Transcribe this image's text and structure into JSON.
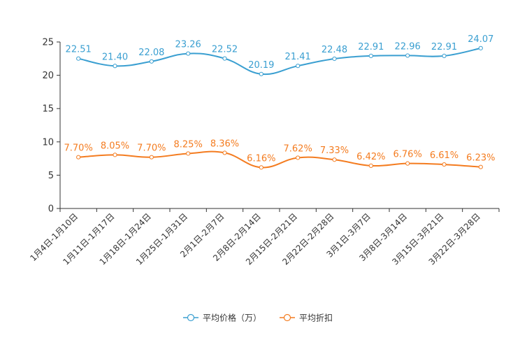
{
  "chart_data": {
    "type": "line",
    "title": "",
    "xlabel": "",
    "ylabel": "",
    "ylim": [
      0,
      25
    ],
    "yticks": [
      0,
      5,
      10,
      15,
      20,
      25
    ],
    "grid": false,
    "legend_position": "bottom-center",
    "categories": [
      "1月4日-1月10日",
      "1月11日-1月17日",
      "1月18日-1月24日",
      "1月25日-1月31日",
      "2月1日-2月7日",
      "2月8日-2月14日",
      "2月15日-2月21日",
      "2月22日-2月28日",
      "3月1日-3月7日",
      "3月8日-3月14日",
      "3月15日-3月21日",
      "3月22日-3月28日"
    ],
    "series": [
      {
        "name": "平均价格（万）",
        "color": "#3a9fd1",
        "values": [
          22.51,
          21.4,
          22.08,
          23.26,
          22.52,
          20.19,
          21.41,
          22.48,
          22.91,
          22.96,
          22.91,
          24.07
        ],
        "labels": [
          "22.51",
          "21.40",
          "22.08",
          "23.26",
          "22.52",
          "20.19",
          "21.41",
          "22.48",
          "22.91",
          "22.96",
          "22.91",
          "24.07"
        ]
      },
      {
        "name": "平均折扣",
        "color": "#f47c20",
        "values": [
          7.7,
          8.05,
          7.7,
          8.25,
          8.36,
          6.16,
          7.62,
          7.33,
          6.42,
          6.76,
          6.61,
          6.23
        ],
        "labels": [
          "7.70%",
          "8.05%",
          "7.70%",
          "8.25%",
          "8.36%",
          "6.16%",
          "7.62%",
          "7.33%",
          "6.42%",
          "6.76%",
          "6.61%",
          "6.23%"
        ]
      }
    ]
  }
}
